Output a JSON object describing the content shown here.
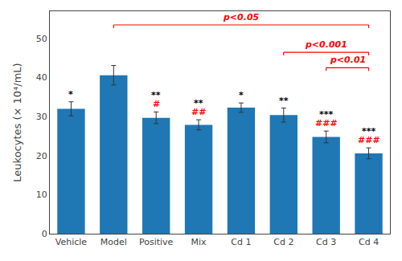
{
  "chart_data": {
    "type": "bar",
    "categories": [
      "Vehicle",
      "Model",
      "Positive",
      "Mix",
      "Cd 1",
      "Cd 2",
      "Cd 3",
      "Cd 4"
    ],
    "values": [
      32.0,
      40.6,
      29.7,
      27.9,
      32.3,
      30.4,
      24.8,
      20.6
    ],
    "errors": [
      1.8,
      2.5,
      1.5,
      1.3,
      1.2,
      1.8,
      1.5,
      1.4
    ],
    "ylabel": "Leukocytes (× 10⁴/mL)",
    "ylim": [
      0,
      57
    ],
    "yticks": [
      0,
      10,
      20,
      30,
      40,
      50
    ],
    "grid": false,
    "annotations": [
      {
        "category": "Vehicle",
        "marks": [
          {
            "text": "*",
            "color": "black"
          }
        ]
      },
      {
        "category": "Positive",
        "marks": [
          {
            "text": "#",
            "color": "red"
          },
          {
            "text": "**",
            "color": "black"
          }
        ]
      },
      {
        "category": "Mix",
        "marks": [
          {
            "text": "##",
            "color": "red"
          },
          {
            "text": "**",
            "color": "black"
          }
        ]
      },
      {
        "category": "Cd 1",
        "marks": [
          {
            "text": "*",
            "color": "black"
          }
        ]
      },
      {
        "category": "Cd 2",
        "marks": [
          {
            "text": "**",
            "color": "black"
          }
        ]
      },
      {
        "category": "Cd 3",
        "marks": [
          {
            "text": "###",
            "color": "red"
          },
          {
            "text": "***",
            "color": "black"
          }
        ]
      },
      {
        "category": "Cd 4",
        "marks": [
          {
            "text": "###",
            "color": "red"
          },
          {
            "text": "***",
            "color": "black"
          }
        ]
      }
    ],
    "brackets": [
      {
        "from": "Model",
        "to": "Cd 4",
        "y": 53.5,
        "label": "p<0.05",
        "color": "red"
      },
      {
        "from": "Cd 2",
        "to": "Cd 4",
        "y": 46.5,
        "label": "p<0.001",
        "color": "red"
      },
      {
        "from": "Cd 3",
        "to": "Cd 4",
        "y": 42.5,
        "label": "p<0.01",
        "color": "red"
      }
    ]
  }
}
